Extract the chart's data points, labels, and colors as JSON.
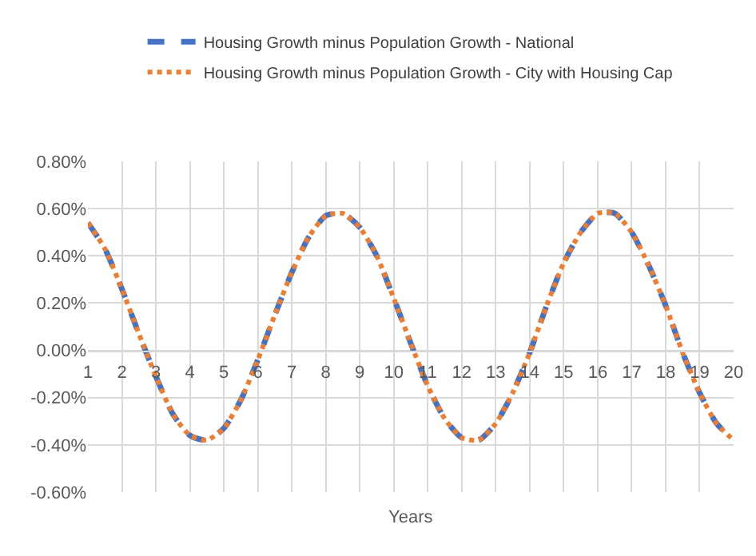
{
  "chart_data": {
    "type": "line",
    "xlabel": "Years",
    "x": [
      1,
      1.5,
      2,
      2.5,
      3,
      3.5,
      4,
      4.5,
      5,
      5.5,
      6,
      6.5,
      7,
      7.5,
      8,
      8.5,
      9,
      9.5,
      10,
      10.5,
      11,
      11.5,
      12,
      12.5,
      13,
      13.5,
      14,
      14.5,
      15,
      15.5,
      16,
      16.5,
      17,
      17.5,
      18,
      18.5,
      19,
      19.5,
      20
    ],
    "series": [
      {
        "name": "Housing Growth minus Population Growth - National",
        "color": "#4472c4",
        "line_style": "dashed",
        "values": [
          0.54,
          0.43,
          0.26,
          0.07,
          -0.11,
          -0.27,
          -0.36,
          -0.38,
          -0.33,
          -0.21,
          -0.04,
          0.15,
          0.33,
          0.48,
          0.57,
          0.58,
          0.52,
          0.4,
          0.22,
          0.03,
          -0.15,
          -0.29,
          -0.37,
          -0.38,
          -0.31,
          -0.18,
          -0.01,
          0.19,
          0.37,
          0.5,
          0.58,
          0.58,
          0.5,
          0.36,
          0.19,
          -0.01,
          -0.18,
          -0.31,
          -0.38
        ]
      },
      {
        "name": "Housing Growth minus Population Growth - City with Housing Cap",
        "color": "#ed7d31",
        "line_style": "dotted",
        "values": [
          0.54,
          0.43,
          0.26,
          0.07,
          -0.11,
          -0.27,
          -0.36,
          -0.38,
          -0.33,
          -0.21,
          -0.04,
          0.15,
          0.33,
          0.48,
          0.57,
          0.58,
          0.52,
          0.4,
          0.22,
          0.03,
          -0.15,
          -0.29,
          -0.37,
          -0.38,
          -0.31,
          -0.18,
          -0.01,
          0.19,
          0.37,
          0.5,
          0.58,
          0.58,
          0.5,
          0.36,
          0.19,
          -0.01,
          -0.18,
          -0.31,
          -0.38
        ]
      }
    ],
    "xlim": [
      1,
      20
    ],
    "xticks": [
      1,
      2,
      3,
      4,
      5,
      6,
      7,
      8,
      9,
      10,
      11,
      12,
      13,
      14,
      15,
      16,
      17,
      18,
      19,
      20
    ],
    "ylim": [
      -0.6,
      0.8
    ],
    "yticks": [
      {
        "value": -0.6,
        "label": "-0.60%"
      },
      {
        "value": -0.4,
        "label": "-0.40%"
      },
      {
        "value": -0.2,
        "label": "-0.20%"
      },
      {
        "value": 0,
        "label": "0.00%"
      },
      {
        "value": 0.2,
        "label": "0.20%"
      },
      {
        "value": 0.4,
        "label": "0.40%"
      },
      {
        "value": 0.6,
        "label": "0.60%"
      },
      {
        "value": 0.8,
        "label": "0.80%"
      }
    ],
    "grid": true,
    "legend": "top",
    "marker": "none"
  }
}
